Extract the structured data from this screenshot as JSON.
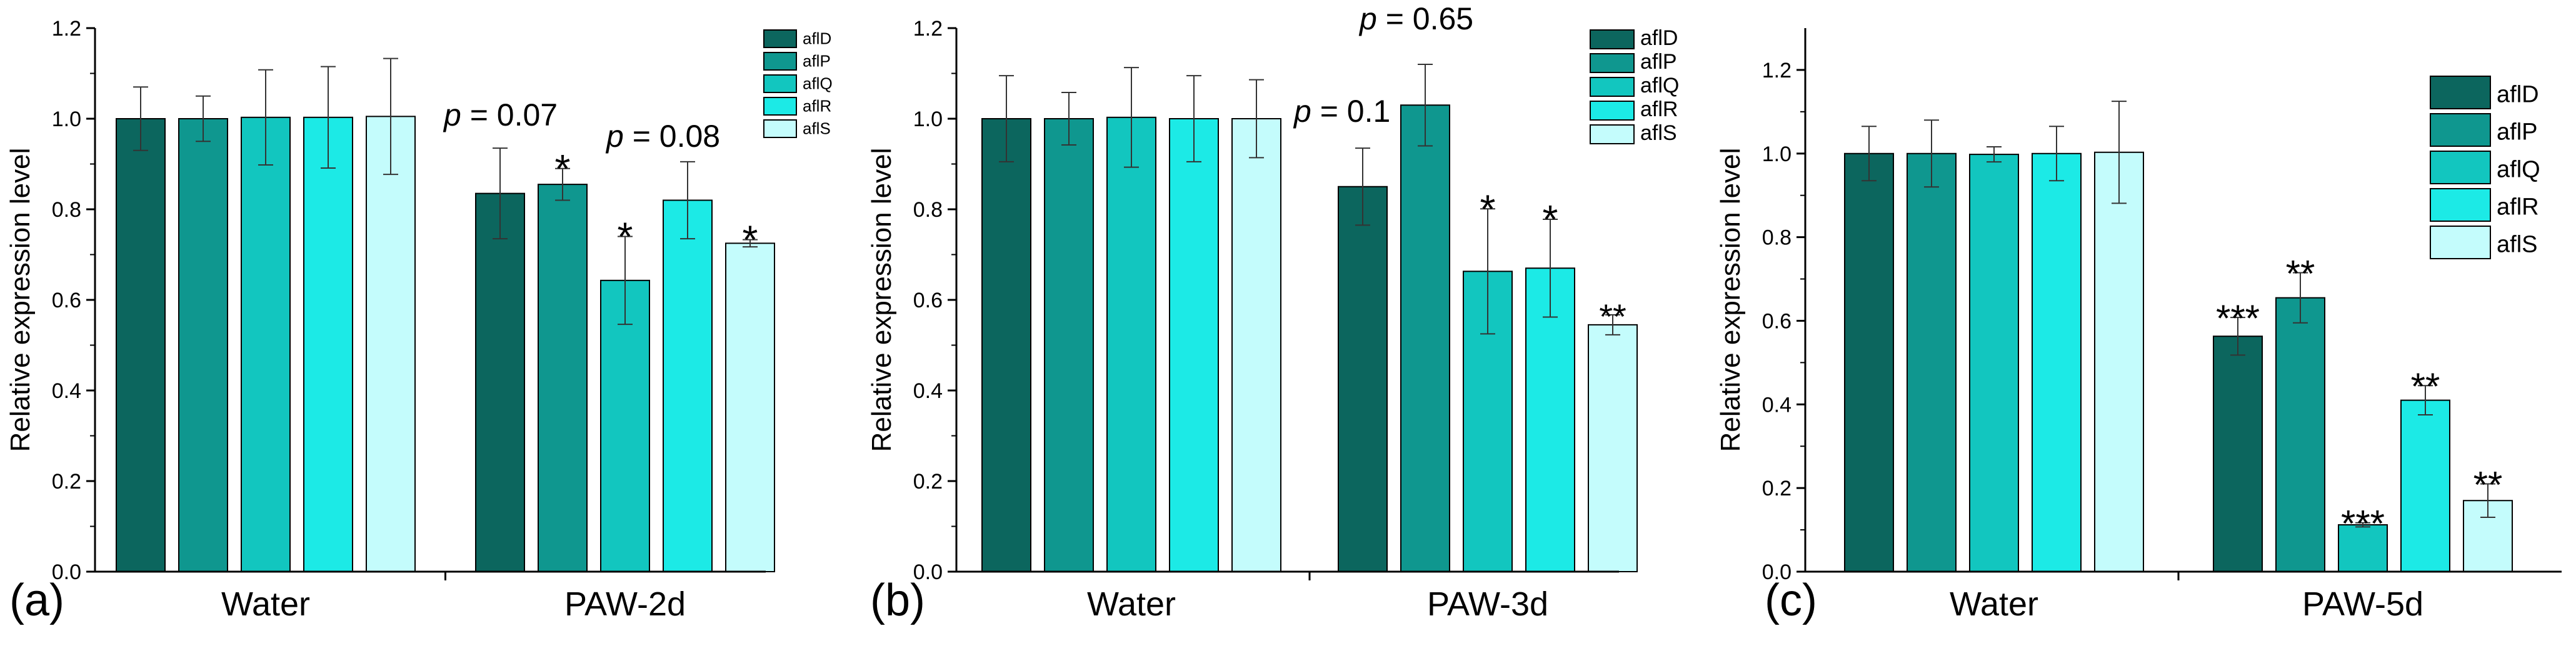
{
  "colors": {
    "afID": "#0c665e",
    "afIP": "#0f978f",
    "afIQ": "#12c6bf",
    "afIR": "#1ceae6",
    "afIS": "#c4fcfc",
    "axis": "#000000"
  },
  "chart_data": [
    {
      "type": "bar",
      "panel_label": "(a)",
      "ylabel": "Relative expression level",
      "xlabel": "",
      "ylim": [
        0,
        1.2
      ],
      "yticks": [
        "0.0",
        "0.2",
        "0.4",
        "0.6",
        "0.8",
        "1.0",
        "1.2"
      ],
      "categories": [
        "Water",
        "PAW-2d"
      ],
      "series": [
        {
          "name": "aflD",
          "values": [
            1.0,
            0.835
          ],
          "errors": [
            0.07,
            0.1
          ]
        },
        {
          "name": "aflP",
          "values": [
            1.0,
            0.855
          ],
          "errors": [
            0.05,
            0.035
          ]
        },
        {
          "name": "aflQ",
          "values": [
            1.003,
            0.643
          ],
          "errors": [
            0.105,
            0.097
          ]
        },
        {
          "name": "aflR",
          "values": [
            1.003,
            0.82
          ],
          "errors": [
            0.112,
            0.085
          ]
        },
        {
          "name": "aflS",
          "values": [
            1.005,
            0.725
          ],
          "errors": [
            0.128,
            0.008
          ]
        }
      ],
      "annotations": [
        {
          "text": "p = 0.07",
          "series": "aflD",
          "category": "PAW-2d"
        },
        {
          "text": "*",
          "series": "aflP",
          "category": "PAW-2d"
        },
        {
          "text": "*",
          "series": "aflQ",
          "category": "PAW-2d"
        },
        {
          "text": "p = 0.08",
          "series": "aflR",
          "category": "PAW-2d"
        },
        {
          "text": "*",
          "series": "aflS",
          "category": "PAW-2d"
        }
      ],
      "legend": "top-right"
    },
    {
      "type": "bar",
      "panel_label": "(b)",
      "ylabel": "Relative expression level",
      "xlabel": "",
      "ylim": [
        0,
        1.2
      ],
      "yticks": [
        "0.0",
        "0.2",
        "0.4",
        "0.6",
        "0.8",
        "1.0",
        "1.2"
      ],
      "categories": [
        "Water",
        "PAW-3d"
      ],
      "series": [
        {
          "name": "aflD",
          "values": [
            1.0,
            0.85
          ],
          "errors": [
            0.095,
            0.085
          ]
        },
        {
          "name": "aflP",
          "values": [
            1.0,
            1.03
          ],
          "errors": [
            0.058,
            0.09
          ]
        },
        {
          "name": "aflQ",
          "values": [
            1.003,
            0.663
          ],
          "errors": [
            0.11,
            0.138
          ]
        },
        {
          "name": "aflR",
          "values": [
            1.0,
            0.67
          ],
          "errors": [
            0.095,
            0.108
          ]
        },
        {
          "name": "aflS",
          "values": [
            1.0,
            0.545
          ],
          "errors": [
            0.086,
            0.022
          ]
        }
      ],
      "annotations": [
        {
          "text": "p = 0.1",
          "series": "aflD",
          "category": "PAW-3d"
        },
        {
          "text": "p = 0.65",
          "series": "aflP",
          "category": "PAW-3d"
        },
        {
          "text": "*",
          "series": "aflQ",
          "category": "PAW-3d"
        },
        {
          "text": "*",
          "series": "aflR",
          "category": "PAW-3d"
        },
        {
          "text": "**",
          "series": "aflS",
          "category": "PAW-3d"
        }
      ],
      "legend": "top-right"
    },
    {
      "type": "bar",
      "panel_label": "(c)",
      "ylabel": "Relative expression level",
      "xlabel": "",
      "ylim": [
        0,
        1.3
      ],
      "yticks": [
        "0.0",
        "0.2",
        "0.4",
        "0.6",
        "0.8",
        "1.0",
        "1.2"
      ],
      "categories": [
        "Water",
        "PAW-5d"
      ],
      "series": [
        {
          "name": "aflD",
          "values": [
            1.0,
            0.563
          ],
          "errors": [
            0.065,
            0.045
          ]
        },
        {
          "name": "aflP",
          "values": [
            1.0,
            0.655
          ],
          "errors": [
            0.08,
            0.06
          ]
        },
        {
          "name": "aflQ",
          "values": [
            0.998,
            0.112
          ],
          "errors": [
            0.018,
            0.005
          ]
        },
        {
          "name": "aflR",
          "values": [
            1.0,
            0.41
          ],
          "errors": [
            0.065,
            0.035
          ]
        },
        {
          "name": "aflS",
          "values": [
            1.003,
            0.17
          ],
          "errors": [
            0.122,
            0.04
          ]
        }
      ],
      "annotations": [
        {
          "text": "***",
          "series": "aflD",
          "category": "PAW-5d"
        },
        {
          "text": "**",
          "series": "aflP",
          "category": "PAW-5d"
        },
        {
          "text": "***",
          "series": "aflQ",
          "category": "PAW-5d"
        },
        {
          "text": "**",
          "series": "aflR",
          "category": "PAW-5d"
        },
        {
          "text": "**",
          "series": "aflS",
          "category": "PAW-5d"
        }
      ],
      "legend": "top-right"
    }
  ]
}
